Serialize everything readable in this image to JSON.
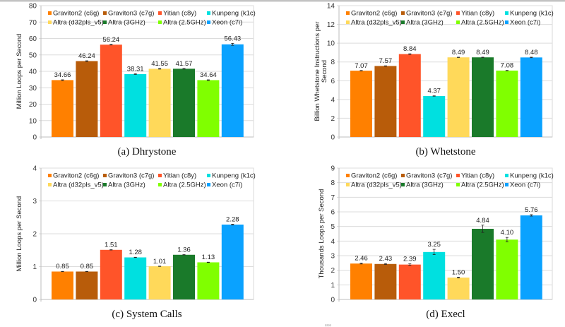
{
  "colors": {
    "Graviton2 (c6g)": "#ff8000",
    "Graviton3 (c7g)": "#b85c0a",
    "Yitian (c8y)": "#ff5429",
    "Kunpeng (k1c)": "#00e0e0",
    "Altra (d32pls_v5)": "#ffd95a",
    "Altra (3GHz)": "#1a7a2a",
    "Altra (2.5GHz)": "#80ff00",
    "Xeon (c7i)": "#0aa2ff"
  },
  "chart_data": [
    {
      "id": "a",
      "type": "bar",
      "caption": "(a) Dhrystone",
      "title": "",
      "xlabel": "",
      "ylabel": "Million Loops per Second",
      "ylim": [
        0,
        80
      ],
      "yticks": [
        0,
        10,
        20,
        30,
        40,
        50,
        60,
        70,
        80
      ],
      "grid": true,
      "legend_position": "top",
      "categories": [
        "Graviton2 (c6g)",
        "Graviton3 (c7g)",
        "Yitian (c8y)",
        "Kunpeng (k1c)",
        "Altra (d32pls_v5)",
        "Altra (3GHz)",
        "Altra (2.5GHz)",
        "Xeon (c7i)"
      ],
      "values": [
        34.66,
        46.24,
        56.24,
        38.31,
        41.55,
        41.57,
        34.64,
        56.43
      ],
      "labels": [
        "34.66",
        "46.24",
        "56.24",
        "38.31",
        "41.55",
        "41.57",
        "34.64",
        "56.43"
      ],
      "errors": [
        0.2,
        0.2,
        0.2,
        0.2,
        0.2,
        0.2,
        0.2,
        0.6
      ]
    },
    {
      "id": "b",
      "type": "bar",
      "caption": "(b) Whetstone",
      "title": "",
      "xlabel": "",
      "ylabel": "Billion Whetstone Instructions per Second",
      "ylabel_lines": [
        "Billion Whetstone Instructions per",
        "Second"
      ],
      "ylim": [
        0,
        14
      ],
      "yticks": [
        0,
        2,
        4,
        6,
        8,
        10,
        12,
        14
      ],
      "grid": true,
      "legend_position": "top",
      "categories": [
        "Graviton2 (c6g)",
        "Graviton3 (c7g)",
        "Yitian (c8y)",
        "Kunpeng (k1c)",
        "Altra (d32pls_v5)",
        "Altra (3GHz)",
        "Altra (2.5GHz)",
        "Xeon (c7i)"
      ],
      "values": [
        7.07,
        7.57,
        8.84,
        4.37,
        8.49,
        8.49,
        7.08,
        8.48
      ],
      "labels": [
        "7.07",
        "7.57",
        "8.84",
        "4.37",
        "8.49",
        "8.49",
        "7.08",
        "8.48"
      ],
      "errors": [
        0.02,
        0.02,
        0.03,
        0.02,
        0.02,
        0.02,
        0.02,
        0.03
      ]
    },
    {
      "id": "c",
      "type": "bar",
      "caption": "(c) System Calls",
      "title": "",
      "xlabel": "",
      "ylabel": "Million Loops per Second",
      "ylim": [
        0,
        4
      ],
      "yticks": [
        0,
        1,
        2,
        3,
        4
      ],
      "grid": true,
      "legend_position": "top",
      "categories": [
        "Graviton2 (c6g)",
        "Graviton3 (c7g)",
        "Yitian (c8y)",
        "Kunpeng (k1c)",
        "Altra (d32pls_v5)",
        "Altra (3GHz)",
        "Altra (2.5GHz)",
        "Xeon (c7i)"
      ],
      "values": [
        0.85,
        0.85,
        1.51,
        1.28,
        1.01,
        1.36,
        1.13,
        2.28
      ],
      "labels": [
        "0.85",
        "0.85",
        "1.51",
        "1.28",
        "1.01",
        "1.36",
        "1.13",
        "2.28"
      ],
      "errors": [
        0.005,
        0.005,
        0.005,
        0.005,
        0.005,
        0.005,
        0.005,
        0.01
      ]
    },
    {
      "id": "d",
      "type": "bar",
      "caption": "(d) Execl",
      "title": "",
      "xlabel": "",
      "ylabel": "Thousands Loops per Second",
      "ylim": [
        0,
        9
      ],
      "yticks": [
        0,
        1,
        2,
        3,
        4,
        5,
        6,
        7,
        8,
        9
      ],
      "grid": true,
      "legend_position": "top",
      "categories": [
        "Graviton2 (c6g)",
        "Graviton3 (c7g)",
        "Yitian (c8y)",
        "Kunpeng (k1c)",
        "Altra (d32pls_v5)",
        "Altra (3GHz)",
        "Altra (2.5GHz)",
        "Xeon (c7i)"
      ],
      "values": [
        2.46,
        2.43,
        2.39,
        3.25,
        1.5,
        4.84,
        4.1,
        5.76
      ],
      "labels": [
        "2.46",
        "2.43",
        "2.39",
        "3.25",
        "1.50",
        "4.84",
        "4.10",
        "5.76"
      ],
      "errors": [
        0.03,
        0.03,
        0.05,
        0.18,
        0.03,
        0.25,
        0.15,
        0.05
      ]
    }
  ],
  "footnote": "2222"
}
